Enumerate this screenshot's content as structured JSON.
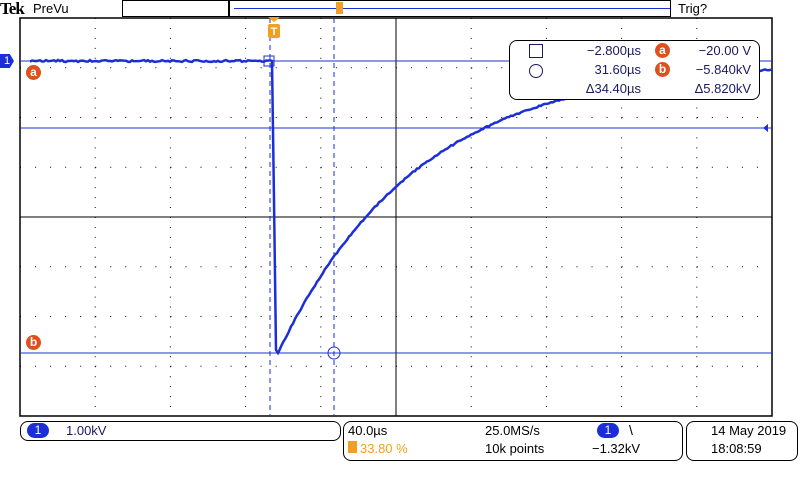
{
  "header": {
    "brand": "Tek",
    "mode": "PreVu",
    "trigger_status": "Trig?"
  },
  "cursor_readout": {
    "cursor1_time": "−2.800µs",
    "cursor2_time": "31.60µs",
    "delta_time": "Δ34.40µs",
    "a_label": "a",
    "a_value": "−20.00 V",
    "b_label": "b",
    "b_value": "−5.840kV",
    "delta_volt": "Δ5.820kV"
  },
  "channel": {
    "number": "1",
    "scale": "1.00kV",
    "color": "#1c2fd6"
  },
  "markers": {
    "a": "a",
    "b": "b",
    "trigger": "T"
  },
  "timebase": {
    "scale": "40.0µs",
    "trigger_position": "33.80 %",
    "sample_rate": "25.0MS/s",
    "record_length": "10k points",
    "trigger_source": "1",
    "trigger_slope": "falling-edge-icon",
    "trigger_level": "−1.32kV"
  },
  "clock": {
    "date": "14 May 2019",
    "time": "18:08:59"
  },
  "colors": {
    "trace": "#1c2fd6",
    "trigger": "#f0a020",
    "cursor_marker": "#e0501c"
  }
}
